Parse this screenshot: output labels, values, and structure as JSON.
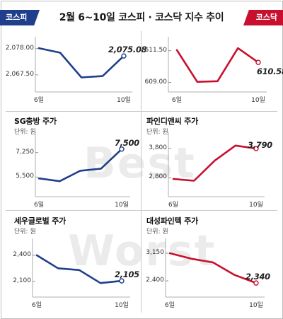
{
  "header": {
    "title": "2월 6~10일 코스피 · 코스닥 지수 추이",
    "left_tag": "코스피",
    "right_tag": "코스닥"
  },
  "watermark": {
    "line1": "Best",
    "line2": "Worst"
  },
  "colors": {
    "blue": "#1f3f8c",
    "red": "#c8102e"
  },
  "chart_data": [
    {
      "id": "kospi",
      "type": "line",
      "color": "blue",
      "title": "",
      "unit": "",
      "x": [
        "6일",
        "7일",
        "8일",
        "9일",
        "10일"
      ],
      "values": [
        2078.2,
        2076.4,
        2066.5,
        2067.0,
        2075.08
      ],
      "ylim": [
        2063.5,
        2080.5
      ],
      "yticks": [
        "2,078.00",
        "2,067.50"
      ],
      "ytick_values": [
        2078.0,
        2067.5
      ],
      "xtick_labels": [
        "6일",
        "10일"
      ],
      "xtick_index": [
        0,
        4
      ],
      "last_label": "2,075.08"
    },
    {
      "id": "kosdaq",
      "type": "line",
      "color": "red",
      "title": "",
      "unit": "",
      "x": [
        "6일",
        "7일",
        "8일",
        "9일",
        "10일"
      ],
      "values": [
        611.55,
        609.05,
        609.1,
        611.7,
        610.58
      ],
      "ylim": [
        608.7,
        612.15
      ],
      "yticks": [
        "611.50",
        "609.00"
      ],
      "ytick_values": [
        611.5,
        609.0
      ],
      "xtick_labels": [
        "6일",
        "10일"
      ],
      "xtick_index": [
        0,
        4
      ],
      "last_label": "610.58"
    },
    {
      "id": "sg",
      "type": "line",
      "color": "blue",
      "title": "SG충방 주가",
      "unit": "단위: 원",
      "x": [
        "6일",
        "7일",
        "8일",
        "9일",
        "10일"
      ],
      "values": [
        5400,
        5200,
        5950,
        6100,
        7500
      ],
      "ylim": [
        4600,
        8300
      ],
      "yticks": [
        "7,250",
        "5,500"
      ],
      "ytick_values": [
        7250,
        5500
      ],
      "xtick_labels": [
        "6일",
        "10일"
      ],
      "xtick_index": [
        0,
        4
      ],
      "last_label": "7,500"
    },
    {
      "id": "pine",
      "type": "line",
      "color": "red",
      "title": "파인디앤씨 주가",
      "unit": "단위: 원",
      "x": [
        "6일",
        "7일",
        "8일",
        "9일",
        "10일"
      ],
      "values": [
        2760,
        2700,
        3380,
        3890,
        3790
      ],
      "ylim": [
        2400,
        4150
      ],
      "yticks": [
        "3,800",
        "2,800"
      ],
      "ytick_values": [
        3800,
        2800
      ],
      "xtick_labels": [
        "6일",
        "10일"
      ],
      "xtick_index": [
        0,
        4
      ],
      "last_label": "3,790"
    },
    {
      "id": "sewoo",
      "type": "line",
      "color": "blue",
      "title": "세우글로벌 주가",
      "unit": "단위: 원",
      "x": [
        "6일",
        "7일",
        "8일",
        "9일",
        "10일"
      ],
      "values": [
        2400,
        2250,
        2230,
        2080,
        2105
      ],
      "ylim": [
        2000,
        2530
      ],
      "yticks": [
        "2,400",
        "2,100"
      ],
      "ytick_values": [
        2400,
        2100
      ],
      "xtick_labels": [
        "6일",
        "10일"
      ],
      "xtick_index": [
        0,
        4
      ],
      "last_label": "2,105"
    },
    {
      "id": "daesung",
      "type": "line",
      "color": "red",
      "title": "대성파인텍 주가",
      "unit": "단위: 원",
      "x": [
        "6일",
        "7일",
        "8일",
        "9일",
        "10일"
      ],
      "values": [
        3150,
        3000,
        2900,
        2560,
        2340
      ],
      "ylim": [
        2150,
        3400
      ],
      "yticks": [
        "3,150",
        "2,400"
      ],
      "ytick_values": [
        3150,
        2400
      ],
      "xtick_labels": [
        "6일",
        "10일"
      ],
      "xtick_index": [
        0,
        4
      ],
      "last_label": "2,340"
    }
  ]
}
